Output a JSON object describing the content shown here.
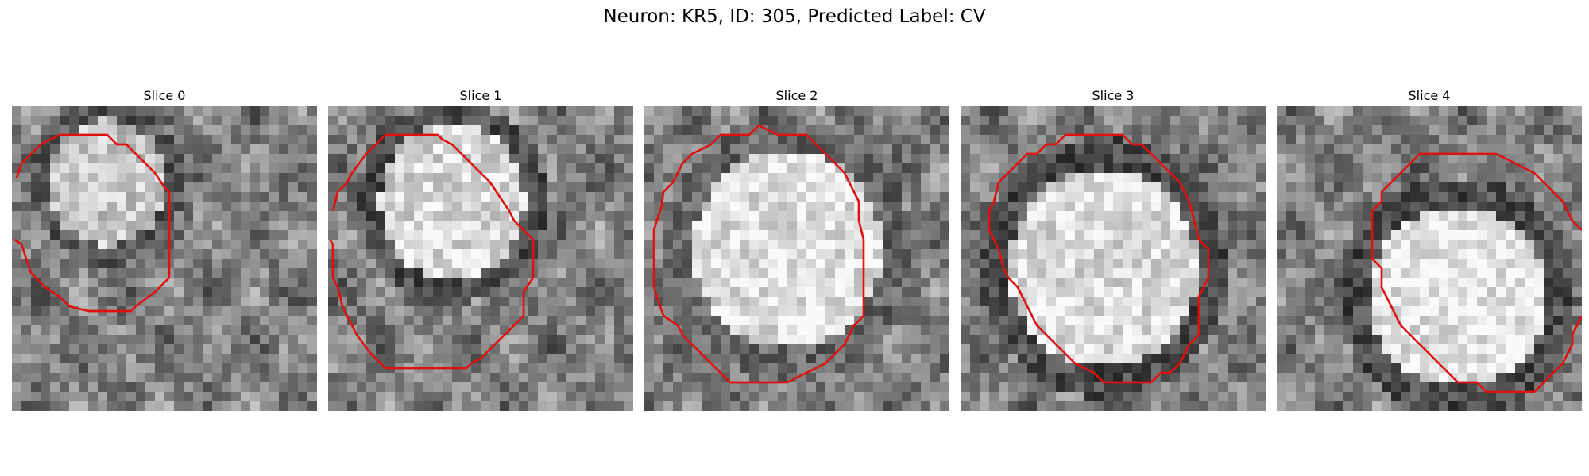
{
  "figure": {
    "suptitle": "Neuron: KR5, ID: 305, Predicted Label: CV",
    "contour_color": "#e01010",
    "colormap": "gray",
    "grid_size": 32
  },
  "panels": [
    {
      "title": "Slice 0",
      "vesicle": {
        "cx": 10,
        "cy": 8,
        "rx": 6.5,
        "ry": 7,
        "brightness": 0.78,
        "membrane": 0.35
      },
      "contour": [
        [
          0.5,
          7.5
        ],
        [
          1,
          6
        ],
        [
          3,
          4
        ],
        [
          5,
          3
        ],
        [
          10,
          3
        ],
        [
          11,
          4
        ],
        [
          12,
          4
        ],
        [
          15,
          7
        ],
        [
          16,
          8.5
        ],
        [
          16.5,
          9
        ],
        [
          16.5,
          18
        ],
        [
          15,
          19.5
        ],
        [
          13,
          21
        ],
        [
          12.5,
          21.5
        ],
        [
          8,
          21.5
        ],
        [
          6,
          21
        ],
        [
          5,
          20
        ],
        [
          3.5,
          19
        ],
        [
          2,
          17.5
        ],
        [
          1,
          14.5
        ],
        [
          0.3,
          14
        ]
      ]
    },
    {
      "title": "Slice 1",
      "vesicle": {
        "cx": 13,
        "cy": 10,
        "rx": 8,
        "ry": 8.5,
        "brightness": 0.85,
        "membrane": 0.3
      },
      "contour": [
        [
          0.5,
          11
        ],
        [
          1,
          9
        ],
        [
          2,
          8
        ],
        [
          2.5,
          7
        ],
        [
          4,
          5
        ],
        [
          5,
          4
        ],
        [
          6,
          3
        ],
        [
          11.5,
          3
        ],
        [
          12,
          3.5
        ],
        [
          13,
          4
        ],
        [
          17,
          8
        ],
        [
          18,
          9.5
        ],
        [
          19,
          11
        ],
        [
          19.5,
          12
        ],
        [
          21,
          13.5
        ],
        [
          21.5,
          14
        ],
        [
          21.5,
          18
        ],
        [
          20.5,
          19.5
        ],
        [
          20.5,
          22
        ],
        [
          19.5,
          23
        ],
        [
          16,
          26.5
        ],
        [
          15,
          27
        ],
        [
          14.5,
          27.5
        ],
        [
          10,
          27.5
        ],
        [
          9,
          27.5
        ],
        [
          6,
          27.5
        ],
        [
          4.5,
          26
        ],
        [
          3,
          24
        ],
        [
          1.5,
          21
        ],
        [
          1,
          19
        ],
        [
          0.5,
          18
        ],
        [
          0.5,
          14.5
        ],
        [
          0.2,
          14
        ]
      ]
    },
    {
      "title": "Slice 2",
      "vesicle": {
        "cx": 15,
        "cy": 15,
        "rx": 10.5,
        "ry": 11,
        "brightness": 0.88,
        "membrane": 0.4
      },
      "contour": [
        [
          13,
          2.5
        ],
        [
          12,
          2
        ],
        [
          11,
          3
        ],
        [
          8,
          3
        ],
        [
          7,
          4
        ],
        [
          5,
          5
        ],
        [
          4,
          6
        ],
        [
          3,
          8
        ],
        [
          2,
          9
        ],
        [
          1.8,
          10.5
        ],
        [
          1,
          13
        ],
        [
          1,
          19
        ],
        [
          2,
          22
        ],
        [
          3.5,
          23
        ],
        [
          4,
          24
        ],
        [
          5,
          25
        ],
        [
          6,
          26
        ],
        [
          8,
          28
        ],
        [
          9,
          29
        ],
        [
          13,
          29
        ],
        [
          15,
          29
        ],
        [
          17,
          28
        ],
        [
          19,
          27
        ],
        [
          20,
          26
        ],
        [
          21,
          25
        ],
        [
          22,
          23
        ],
        [
          23,
          22
        ],
        [
          23,
          14
        ],
        [
          22.5,
          12
        ],
        [
          22.5,
          10
        ],
        [
          21.5,
          8
        ],
        [
          21,
          7
        ],
        [
          20,
          6
        ],
        [
          19,
          5
        ],
        [
          18,
          4
        ],
        [
          17,
          3
        ],
        [
          14,
          3
        ],
        [
          13,
          2.5
        ]
      ]
    },
    {
      "title": "Slice 3",
      "vesicle": {
        "cx": 15,
        "cy": 17,
        "rx": 10.5,
        "ry": 11,
        "brightness": 0.86,
        "membrane": 0.3
      },
      "contour": [
        [
          13,
          3
        ],
        [
          11,
          3
        ],
        [
          10,
          4
        ],
        [
          9,
          4
        ],
        [
          8,
          5
        ],
        [
          7,
          5
        ],
        [
          6,
          6
        ],
        [
          5,
          7
        ],
        [
          4,
          8
        ],
        [
          3.5,
          10
        ],
        [
          3,
          11
        ],
        [
          3,
          13
        ],
        [
          4,
          15
        ],
        [
          4.5,
          17
        ],
        [
          5,
          18
        ],
        [
          6,
          19
        ],
        [
          7,
          21
        ],
        [
          8,
          23
        ],
        [
          9,
          24
        ],
        [
          10,
          25
        ],
        [
          12,
          27
        ],
        [
          14,
          28
        ],
        [
          15,
          29
        ],
        [
          18,
          29
        ],
        [
          20,
          29
        ],
        [
          21,
          28
        ],
        [
          22,
          28
        ],
        [
          23,
          27
        ],
        [
          24,
          25
        ],
        [
          25,
          24
        ],
        [
          25,
          20
        ],
        [
          26,
          18
        ],
        [
          26,
          15
        ],
        [
          25,
          14
        ],
        [
          24.5,
          12
        ],
        [
          24,
          10
        ],
        [
          23,
          8
        ],
        [
          22,
          7
        ],
        [
          21,
          6
        ],
        [
          20,
          5
        ],
        [
          19,
          4
        ],
        [
          18,
          4
        ],
        [
          17,
          3
        ],
        [
          13,
          3
        ]
      ]
    },
    {
      "title": "Slice 4",
      "vesicle": {
        "cx": 19,
        "cy": 20,
        "rx": 10,
        "ry": 10,
        "brightness": 0.9,
        "membrane": 0.3
      },
      "contour": [
        [
          32,
          13
        ],
        [
          31,
          12
        ],
        [
          30,
          10
        ],
        [
          29,
          9
        ],
        [
          28,
          8
        ],
        [
          27,
          7
        ],
        [
          25,
          6
        ],
        [
          23,
          5
        ],
        [
          22,
          5
        ],
        [
          21,
          5
        ],
        [
          15,
          5
        ],
        [
          14,
          6
        ],
        [
          13,
          7
        ],
        [
          12,
          8
        ],
        [
          11,
          9
        ],
        [
          11,
          10
        ],
        [
          10,
          11
        ],
        [
          10,
          12
        ],
        [
          10,
          13
        ],
        [
          10,
          16
        ],
        [
          11,
          17
        ],
        [
          11,
          19
        ],
        [
          12,
          21
        ],
        [
          13,
          23
        ],
        [
          14,
          24
        ],
        [
          15,
          25
        ],
        [
          16,
          26
        ],
        [
          17,
          27
        ],
        [
          18,
          28
        ],
        [
          19,
          29
        ],
        [
          21,
          29
        ],
        [
          22,
          30
        ],
        [
          23,
          30
        ],
        [
          27,
          30
        ],
        [
          28,
          29
        ],
        [
          29,
          28
        ],
        [
          30,
          27
        ],
        [
          31,
          25
        ],
        [
          31,
          24
        ],
        [
          31.5,
          23
        ],
        [
          32,
          22
        ]
      ]
    }
  ]
}
